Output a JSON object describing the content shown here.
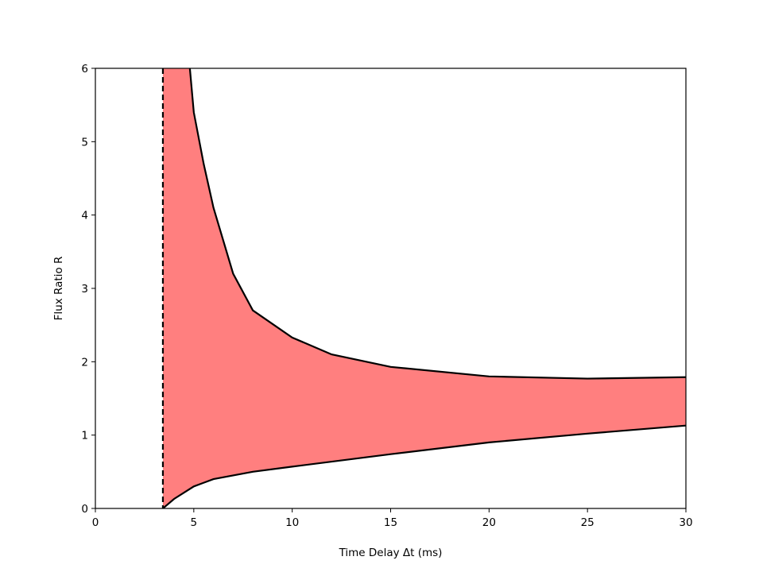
{
  "chart_data": {
    "type": "area",
    "xlabel": "Time Delay Δt (ms)",
    "ylabel": "Flux Ratio R",
    "xlim": [
      0,
      30
    ],
    "ylim": [
      0,
      6
    ],
    "xticks": [
      0,
      5,
      10,
      15,
      20,
      25,
      30
    ],
    "yticks": [
      0,
      1,
      2,
      3,
      4,
      5,
      6
    ],
    "fill_color": "#ff7f7f",
    "series": [
      {
        "color": "#000000",
        "x": [
          4.8,
          5,
          5.5,
          6,
          7,
          8,
          10,
          12,
          15,
          20,
          25,
          30
        ],
        "values": [
          6,
          5.4,
          4.7,
          4.1,
          3.2,
          2.7,
          2.33,
          2.1,
          1.93,
          1.8,
          1.77,
          1.79
        ]
      },
      {
        "color": "#000000",
        "x": [
          3.43,
          4,
          5,
          6,
          8,
          10,
          15,
          20,
          25,
          30
        ],
        "values": [
          0,
          0.13,
          0.3,
          0.4,
          0.5,
          0.57,
          0.74,
          0.9,
          1.02,
          1.13
        ]
      }
    ],
    "vline": {
      "x": 3.43,
      "color": "#000000",
      "style": "dashed"
    }
  }
}
